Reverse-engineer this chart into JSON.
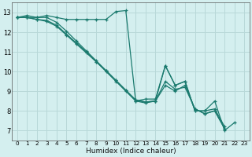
{
  "xlabel": "Humidex (Indice chaleur)",
  "bg_color": "#d4efef",
  "grid_color": "#b8d8d8",
  "line_color": "#1a7a6e",
  "xlim": [
    -0.5,
    23.5
  ],
  "ylim": [
    6.5,
    13.5
  ],
  "xticks": [
    0,
    1,
    2,
    3,
    4,
    5,
    6,
    7,
    8,
    9,
    10,
    11,
    12,
    13,
    14,
    15,
    16,
    17,
    18,
    19,
    20,
    21,
    22,
    23
  ],
  "yticks": [
    7,
    8,
    9,
    10,
    11,
    12,
    13
  ],
  "lines": [
    {
      "x": [
        0,
        1,
        2,
        3,
        4,
        5,
        6,
        7,
        8,
        9,
        10,
        11,
        12,
        13,
        14,
        15,
        16,
        17,
        18,
        19,
        20,
        21,
        22
      ],
      "y": [
        12.75,
        12.85,
        12.75,
        12.85,
        12.75,
        12.65,
        12.65,
        12.65,
        12.65,
        12.65,
        13.05,
        13.1,
        8.5,
        8.6,
        8.6,
        10.3,
        9.3,
        9.5,
        8.0,
        8.0,
        8.5,
        7.0,
        7.4
      ]
    },
    {
      "x": [
        0,
        1,
        2,
        3,
        4,
        5,
        6,
        7,
        8,
        9,
        10,
        11,
        12,
        13,
        14,
        15,
        16,
        17,
        18,
        19,
        20,
        21
      ],
      "y": [
        12.75,
        12.75,
        12.75,
        12.75,
        12.5,
        12.05,
        11.55,
        11.05,
        10.55,
        10.05,
        9.55,
        9.05,
        8.55,
        8.45,
        8.5,
        10.3,
        9.3,
        9.5,
        8.0,
        8.0,
        8.1,
        7.2
      ]
    },
    {
      "x": [
        0,
        1,
        2,
        3,
        4,
        5,
        6,
        7,
        8,
        9,
        10,
        11,
        12,
        13,
        14,
        15,
        16,
        17,
        18,
        19,
        20,
        21
      ],
      "y": [
        12.75,
        12.75,
        12.65,
        12.6,
        12.35,
        11.9,
        11.45,
        11.0,
        10.5,
        10.05,
        9.55,
        9.05,
        8.55,
        8.45,
        8.5,
        9.5,
        9.1,
        9.2,
        8.1,
        7.85,
        8.0,
        7.1
      ]
    },
    {
      "x": [
        0,
        1,
        2,
        3,
        4,
        5,
        6,
        7,
        8,
        9,
        10,
        11,
        12,
        13,
        14,
        15,
        16,
        17,
        18,
        19,
        20,
        21
      ],
      "y": [
        12.75,
        12.75,
        12.65,
        12.55,
        12.3,
        11.85,
        11.4,
        10.95,
        10.5,
        10.0,
        9.5,
        9.0,
        8.5,
        8.4,
        8.5,
        9.3,
        9.0,
        9.3,
        8.1,
        7.85,
        8.0,
        7.1
      ]
    }
  ]
}
